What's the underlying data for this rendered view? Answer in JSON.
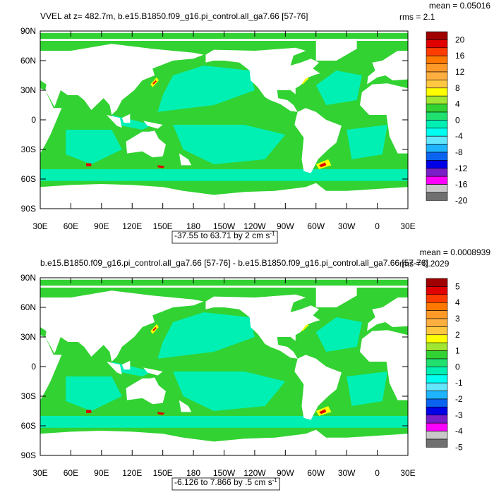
{
  "panels": [
    {
      "title": "VVEL at z= 482.7m, b.e15.B1850.f09_g16.pi_control.all_ga7.66 [57-76]",
      "mean": "mean = 0.05016",
      "rms": "rms = 2.1",
      "y_labels": [
        "90N",
        "60N",
        "30N",
        "0",
        "30S",
        "60S",
        "90S"
      ],
      "x_labels": [
        "30E",
        "60E",
        "90E",
        "120E",
        "150E",
        "180",
        "150W",
        "120W",
        "90W",
        "60W",
        "30W",
        "0",
        "30E"
      ],
      "colorbar_labels": [
        "20",
        "16",
        "12",
        "8",
        "4",
        "0",
        "-4",
        "-8",
        "-12",
        "-16",
        "-20"
      ],
      "range_label": "-37.55 to 63.71 by 2 cm s",
      "range_unit_exponent": "-1"
    },
    {
      "title": "b.e15.B1850.f09_g16.pi_control.all_ga7.66 [57-76] - b.e15.B1850.f09_g16.pi_control.all_ga7.66 [57-76]",
      "mean": "mean = 0.0008939",
      "rms": "rms = 0.2029",
      "y_labels": [
        "90N",
        "60N",
        "30N",
        "0",
        "30S",
        "60S",
        "90S"
      ],
      "x_labels": [
        "30E",
        "60E",
        "90E",
        "120E",
        "150E",
        "180",
        "150W",
        "120W",
        "90W",
        "60W",
        "30W",
        "0",
        "30E"
      ],
      "colorbar_labels": [
        "5",
        "4",
        "3",
        "2",
        "1",
        "0",
        "-1",
        "-2",
        "-3",
        "-4",
        "-5"
      ],
      "range_label": "-6.126 to 7.866 by .5 cm s",
      "range_unit_exponent": "-1"
    }
  ],
  "colorbar_colors": [
    "#a00000",
    "#e00000",
    "#ff3c00",
    "#ff7800",
    "#ff9a28",
    "#ffae40",
    "#ffc840",
    "#ffff00",
    "#a0e632",
    "#32d232",
    "#20e070",
    "#00f0b4",
    "#00fff0",
    "#64e6ff",
    "#1eb4ff",
    "#0a64f0",
    "#0000e6",
    "#7a1ec8",
    "#ff00ff",
    "#c8c8c8",
    "#707070"
  ]
}
